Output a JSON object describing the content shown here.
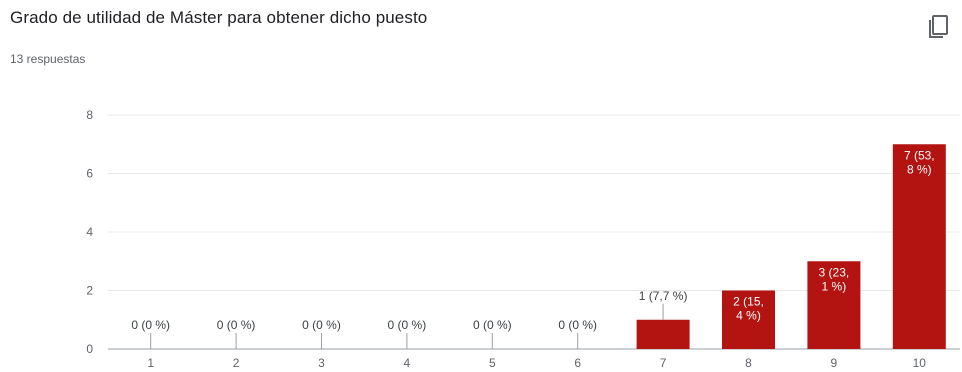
{
  "header": {
    "title": "Grado de utilidad de Máster para obtener dicho puesto",
    "responses": "13 respuestas",
    "copy_icon": "copy-icon"
  },
  "colors": {
    "bar": "#b31412",
    "grid": "#e8e8e8",
    "axis": "#9aa0a6",
    "label_outside": "#3c4043",
    "label_inside": "#ffffff"
  },
  "chart_data": {
    "type": "bar",
    "title": "Grado de utilidad de Máster para obtener dicho puesto",
    "xlabel": "",
    "ylabel": "",
    "categories": [
      "1",
      "2",
      "3",
      "4",
      "5",
      "6",
      "7",
      "8",
      "9",
      "10"
    ],
    "values": [
      0,
      0,
      0,
      0,
      0,
      0,
      1,
      2,
      3,
      7
    ],
    "data_labels": [
      [
        "0 (0 %)"
      ],
      [
        "0 (0 %)"
      ],
      [
        "0 (0 %)"
      ],
      [
        "0 (0 %)"
      ],
      [
        "0 (0 %)"
      ],
      [
        "0 (0 %)"
      ],
      [
        "1 (7,7 %)"
      ],
      [
        "2 (15,",
        "4 %)"
      ],
      [
        "3 (23,",
        "1 %)"
      ],
      [
        "7 (53,",
        "8 %)"
      ]
    ],
    "ylim": [
      0,
      8
    ],
    "yticks": [
      "0",
      "2",
      "4",
      "6",
      "8"
    ],
    "grid": true,
    "legend": "none"
  }
}
